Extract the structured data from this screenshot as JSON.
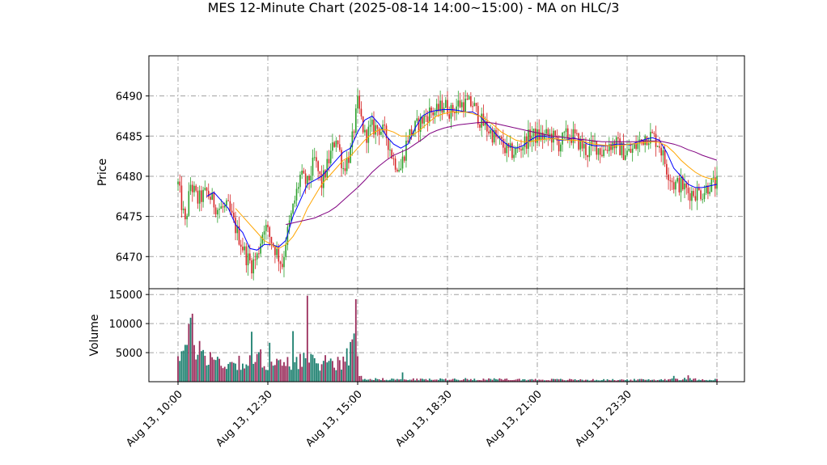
{
  "chart_data": {
    "type": "candlestick",
    "title": "MES 12-Minute Chart (2025-08-14 14:00~15:00) - MA on HLC/3",
    "price_panel": {
      "ylabel": "Price",
      "yticks": [
        6470,
        6475,
        6480,
        6485,
        6490
      ],
      "ylim": [
        6466,
        6495
      ],
      "grid": true,
      "up_color": "#2ca02c",
      "down_color": "#d62728"
    },
    "volume_panel": {
      "ylabel": "Volume",
      "yticks": [
        5000,
        10000,
        15000
      ],
      "yticklabels": [
        "5000",
        "10000",
        "15000"
      ],
      "ylim": [
        0,
        16000
      ],
      "up_color": "#1b7f6e",
      "down_color": "#9b2e5c",
      "grid": true
    },
    "x_index_range": [
      0,
      300
    ],
    "xticks": [
      {
        "index": 0,
        "label": "Aug 13, 10:00"
      },
      {
        "index": 50,
        "label": "Aug 13, 12:30"
      },
      {
        "index": 100,
        "label": "Aug 13, 15:00"
      },
      {
        "index": 150,
        "label": "Aug 13, 18:30"
      },
      {
        "index": 200,
        "label": "Aug 13, 21:00"
      },
      {
        "index": 250,
        "label": "Aug 13, 23:30"
      },
      {
        "index": 300,
        "label": ""
      }
    ],
    "price_path": [
      [
        0,
        6479
      ],
      [
        4,
        6474
      ],
      [
        7,
        6479
      ],
      [
        11,
        6477
      ],
      [
        16,
        6478
      ],
      [
        22,
        6476
      ],
      [
        28,
        6476
      ],
      [
        33,
        6473
      ],
      [
        38,
        6470
      ],
      [
        41,
        6469
      ],
      [
        44,
        6470
      ],
      [
        48,
        6474
      ],
      [
        52,
        6472
      ],
      [
        56,
        6470
      ],
      [
        58,
        6469
      ],
      [
        60,
        6472
      ],
      [
        64,
        6476
      ],
      [
        68,
        6480
      ],
      [
        72,
        6479
      ],
      [
        76,
        6482
      ],
      [
        80,
        6479
      ],
      [
        84,
        6482
      ],
      [
        88,
        6485
      ],
      [
        92,
        6481
      ],
      [
        96,
        6483
      ],
      [
        100,
        6489
      ],
      [
        104,
        6485
      ],
      [
        108,
        6486
      ],
      [
        112,
        6486
      ],
      [
        116,
        6485
      ],
      [
        120,
        6482
      ],
      [
        124,
        6481
      ],
      [
        128,
        6485
      ],
      [
        132,
        6486
      ],
      [
        136,
        6487
      ],
      [
        140,
        6488
      ],
      [
        144,
        6488
      ],
      [
        148,
        6489
      ],
      [
        152,
        6488
      ],
      [
        156,
        6489
      ],
      [
        160,
        6489
      ],
      [
        164,
        6489
      ],
      [
        168,
        6487
      ],
      [
        172,
        6486
      ],
      [
        176,
        6485
      ],
      [
        180,
        6484
      ],
      [
        184,
        6483
      ],
      [
        188,
        6483
      ],
      [
        192,
        6484
      ],
      [
        196,
        6485
      ],
      [
        200,
        6485
      ],
      [
        204,
        6485
      ],
      [
        208,
        6485
      ],
      [
        212,
        6484
      ],
      [
        216,
        6485
      ],
      [
        220,
        6485
      ],
      [
        224,
        6484
      ],
      [
        228,
        6483
      ],
      [
        232,
        6484
      ],
      [
        236,
        6483
      ],
      [
        240,
        6484
      ],
      [
        244,
        6484
      ],
      [
        248,
        6483
      ],
      [
        252,
        6483
      ],
      [
        256,
        6484
      ],
      [
        260,
        6485
      ],
      [
        264,
        6485
      ],
      [
        268,
        6484
      ],
      [
        272,
        6481
      ],
      [
        276,
        6479
      ],
      [
        280,
        6479
      ],
      [
        284,
        6478
      ],
      [
        288,
        6478
      ],
      [
        292,
        6478
      ],
      [
        296,
        6479
      ],
      [
        300,
        6479
      ]
    ],
    "moving_averages": [
      {
        "color": "#0000ff",
        "points": [
          [
            16,
            6477.5
          ],
          [
            20,
            6478
          ],
          [
            24,
            6477
          ],
          [
            28,
            6476
          ],
          [
            32,
            6474
          ],
          [
            36,
            6473
          ],
          [
            40,
            6471
          ],
          [
            44,
            6470.8
          ],
          [
            48,
            6471.5
          ],
          [
            52,
            6471.5
          ],
          [
            56,
            6471.2
          ],
          [
            60,
            6472
          ],
          [
            64,
            6475
          ],
          [
            68,
            6477
          ],
          [
            72,
            6479
          ],
          [
            76,
            6479.5
          ],
          [
            80,
            6480
          ],
          [
            84,
            6481
          ],
          [
            88,
            6482
          ],
          [
            92,
            6483
          ],
          [
            96,
            6483.5
          ],
          [
            100,
            6485.5
          ],
          [
            104,
            6487
          ],
          [
            108,
            6487.5
          ],
          [
            112,
            6486.5
          ],
          [
            116,
            6485
          ],
          [
            120,
            6484
          ],
          [
            124,
            6483.5
          ],
          [
            128,
            6484
          ],
          [
            132,
            6486
          ],
          [
            136,
            6487.5
          ],
          [
            140,
            6488
          ],
          [
            144,
            6488.2
          ],
          [
            148,
            6488.3
          ],
          [
            152,
            6488.3
          ],
          [
            156,
            6488.2
          ],
          [
            160,
            6488
          ],
          [
            164,
            6488
          ],
          [
            168,
            6487.5
          ],
          [
            172,
            6486.5
          ],
          [
            176,
            6485.5
          ],
          [
            180,
            6484.5
          ],
          [
            184,
            6483.8
          ],
          [
            188,
            6483.5
          ],
          [
            192,
            6483.8
          ],
          [
            196,
            6484.5
          ],
          [
            200,
            6485
          ],
          [
            204,
            6485
          ],
          [
            208,
            6484.8
          ],
          [
            212,
            6484.5
          ],
          [
            216,
            6484.5
          ],
          [
            220,
            6484.8
          ],
          [
            224,
            6484.5
          ],
          [
            228,
            6484
          ],
          [
            232,
            6483.8
          ],
          [
            236,
            6483.8
          ],
          [
            240,
            6483.8
          ],
          [
            244,
            6484
          ],
          [
            248,
            6484
          ],
          [
            252,
            6483.9
          ],
          [
            256,
            6484.3
          ],
          [
            260,
            6484.6
          ],
          [
            264,
            6484.8
          ],
          [
            268,
            6484.5
          ],
          [
            272,
            6483
          ],
          [
            276,
            6481
          ],
          [
            280,
            6480
          ],
          [
            284,
            6479
          ],
          [
            288,
            6478.6
          ],
          [
            292,
            6478.6
          ],
          [
            296,
            6478.8
          ],
          [
            300,
            6479
          ]
        ]
      },
      {
        "color": "#ffa500",
        "points": [
          [
            32,
            6476
          ],
          [
            36,
            6475
          ],
          [
            40,
            6474
          ],
          [
            44,
            6473
          ],
          [
            48,
            6472
          ],
          [
            52,
            6471.5
          ],
          [
            56,
            6471
          ],
          [
            60,
            6471.5
          ],
          [
            64,
            6472.5
          ],
          [
            68,
            6474
          ],
          [
            72,
            6476
          ],
          [
            76,
            6477.5
          ],
          [
            80,
            6479
          ],
          [
            84,
            6480
          ],
          [
            88,
            6481
          ],
          [
            92,
            6482
          ],
          [
            96,
            6482.5
          ],
          [
            100,
            6483.5
          ],
          [
            104,
            6484.5
          ],
          [
            108,
            6485.3
          ],
          [
            112,
            6485.8
          ],
          [
            116,
            6485.8
          ],
          [
            120,
            6485.5
          ],
          [
            124,
            6485
          ],
          [
            128,
            6485
          ],
          [
            132,
            6485.3
          ],
          [
            136,
            6486
          ],
          [
            140,
            6486.8
          ],
          [
            144,
            6487.5
          ],
          [
            148,
            6487.8
          ],
          [
            152,
            6488
          ],
          [
            156,
            6488
          ],
          [
            160,
            6488
          ],
          [
            164,
            6487.8
          ],
          [
            168,
            6487.5
          ],
          [
            172,
            6487
          ],
          [
            176,
            6486.3
          ],
          [
            180,
            6485.5
          ],
          [
            184,
            6485
          ],
          [
            188,
            6484.5
          ],
          [
            192,
            6484.3
          ],
          [
            196,
            6484.3
          ],
          [
            200,
            6484.5
          ],
          [
            204,
            6484.6
          ],
          [
            208,
            6484.7
          ],
          [
            212,
            6484.6
          ],
          [
            216,
            6484.5
          ],
          [
            220,
            6484.5
          ],
          [
            224,
            6484.4
          ],
          [
            228,
            6484.2
          ],
          [
            232,
            6484
          ],
          [
            236,
            6483.9
          ],
          [
            240,
            6483.8
          ],
          [
            244,
            6483.8
          ],
          [
            248,
            6483.9
          ],
          [
            252,
            6484
          ],
          [
            256,
            6484.1
          ],
          [
            260,
            6484.2
          ],
          [
            264,
            6484.3
          ],
          [
            268,
            6484.2
          ],
          [
            272,
            6483.8
          ],
          [
            276,
            6483
          ],
          [
            280,
            6482
          ],
          [
            284,
            6481.2
          ],
          [
            288,
            6480.5
          ],
          [
            292,
            6480
          ],
          [
            296,
            6479.7
          ],
          [
            300,
            6479.6
          ]
        ]
      },
      {
        "color": "#800080",
        "points": [
          [
            60,
            6474
          ],
          [
            64,
            6474.2
          ],
          [
            68,
            6474.4
          ],
          [
            72,
            6474.6
          ],
          [
            76,
            6474.8
          ],
          [
            80,
            6475.2
          ],
          [
            84,
            6475.6
          ],
          [
            88,
            6476.2
          ],
          [
            92,
            6477
          ],
          [
            96,
            6477.8
          ],
          [
            100,
            6478.6
          ],
          [
            104,
            6479.5
          ],
          [
            108,
            6480.5
          ],
          [
            112,
            6481.3
          ],
          [
            116,
            6482
          ],
          [
            120,
            6482.6
          ],
          [
            124,
            6483
          ],
          [
            128,
            6483.4
          ],
          [
            132,
            6484
          ],
          [
            136,
            6484.6
          ],
          [
            140,
            6485.3
          ],
          [
            144,
            6485.7
          ],
          [
            148,
            6486
          ],
          [
            152,
            6486.2
          ],
          [
            156,
            6486.4
          ],
          [
            160,
            6486.5
          ],
          [
            164,
            6486.6
          ],
          [
            168,
            6486.7
          ],
          [
            172,
            6486.7
          ],
          [
            176,
            6486.6
          ],
          [
            180,
            6486.4
          ],
          [
            184,
            6486.2
          ],
          [
            188,
            6486
          ],
          [
            192,
            6485.8
          ],
          [
            196,
            6485.6
          ],
          [
            200,
            6485.4
          ],
          [
            204,
            6485.2
          ],
          [
            208,
            6485
          ],
          [
            212,
            6484.9
          ],
          [
            216,
            6484.8
          ],
          [
            220,
            6484.7
          ],
          [
            224,
            6484.6
          ],
          [
            228,
            6484.5
          ],
          [
            232,
            6484.4
          ],
          [
            236,
            6484.3
          ],
          [
            240,
            6484.3
          ],
          [
            244,
            6484.3
          ],
          [
            248,
            6484.3
          ],
          [
            252,
            6484.3
          ],
          [
            256,
            6484.3
          ],
          [
            260,
            6484.4
          ],
          [
            264,
            6484.4
          ],
          [
            268,
            6484.4
          ],
          [
            272,
            6484.2
          ],
          [
            276,
            6484
          ],
          [
            280,
            6483.7
          ],
          [
            284,
            6483.3
          ],
          [
            288,
            6483
          ],
          [
            292,
            6482.6
          ],
          [
            296,
            6482.3
          ],
          [
            300,
            6482
          ]
        ]
      }
    ],
    "volume_path": [
      [
        0,
        5500
      ],
      [
        3,
        5000
      ],
      [
        6,
        7000
      ],
      [
        8,
        9000
      ],
      [
        10,
        6000
      ],
      [
        14,
        5000
      ],
      [
        18,
        4200
      ],
      [
        22,
        3500
      ],
      [
        26,
        3000
      ],
      [
        30,
        3200
      ],
      [
        34,
        3500
      ],
      [
        38,
        3000
      ],
      [
        42,
        3500
      ],
      [
        46,
        4000
      ],
      [
        50,
        3200
      ],
      [
        54,
        3000
      ],
      [
        58,
        2800
      ],
      [
        62,
        3200
      ],
      [
        66,
        3800
      ],
      [
        70,
        4000
      ],
      [
        74,
        3300
      ],
      [
        78,
        3200
      ],
      [
        82,
        3500
      ],
      [
        86,
        3300
      ],
      [
        90,
        3600
      ],
      [
        94,
        4200
      ],
      [
        98,
        6000
      ],
      [
        100,
        6000
      ],
      [
        101,
        1200
      ],
      [
        103,
        600
      ],
      [
        106,
        500
      ],
      [
        110,
        450
      ],
      [
        120,
        420
      ],
      [
        130,
        400
      ],
      [
        140,
        380
      ],
      [
        150,
        420
      ],
      [
        160,
        440
      ],
      [
        170,
        420
      ],
      [
        180,
        400
      ],
      [
        190,
        380
      ],
      [
        200,
        360
      ],
      [
        210,
        360
      ],
      [
        220,
        340
      ],
      [
        230,
        320
      ],
      [
        240,
        320
      ],
      [
        250,
        330
      ],
      [
        260,
        340
      ],
      [
        270,
        360
      ],
      [
        276,
        500
      ],
      [
        280,
        420
      ],
      [
        284,
        550
      ],
      [
        288,
        420
      ],
      [
        292,
        380
      ],
      [
        296,
        360
      ],
      [
        300,
        380
      ]
    ],
    "volume_spikes": [
      {
        "index": 8,
        "value": 11700
      },
      {
        "index": 41,
        "value": 8600
      },
      {
        "index": 51,
        "value": 6700
      },
      {
        "index": 64,
        "value": 8700
      },
      {
        "index": 72,
        "value": 14800
      },
      {
        "index": 99,
        "value": 14200
      },
      {
        "index": 98,
        "value": 8300
      },
      {
        "index": 125,
        "value": 1600
      },
      {
        "index": 276,
        "value": 1000
      },
      {
        "index": 284,
        "value": 1100
      }
    ]
  }
}
